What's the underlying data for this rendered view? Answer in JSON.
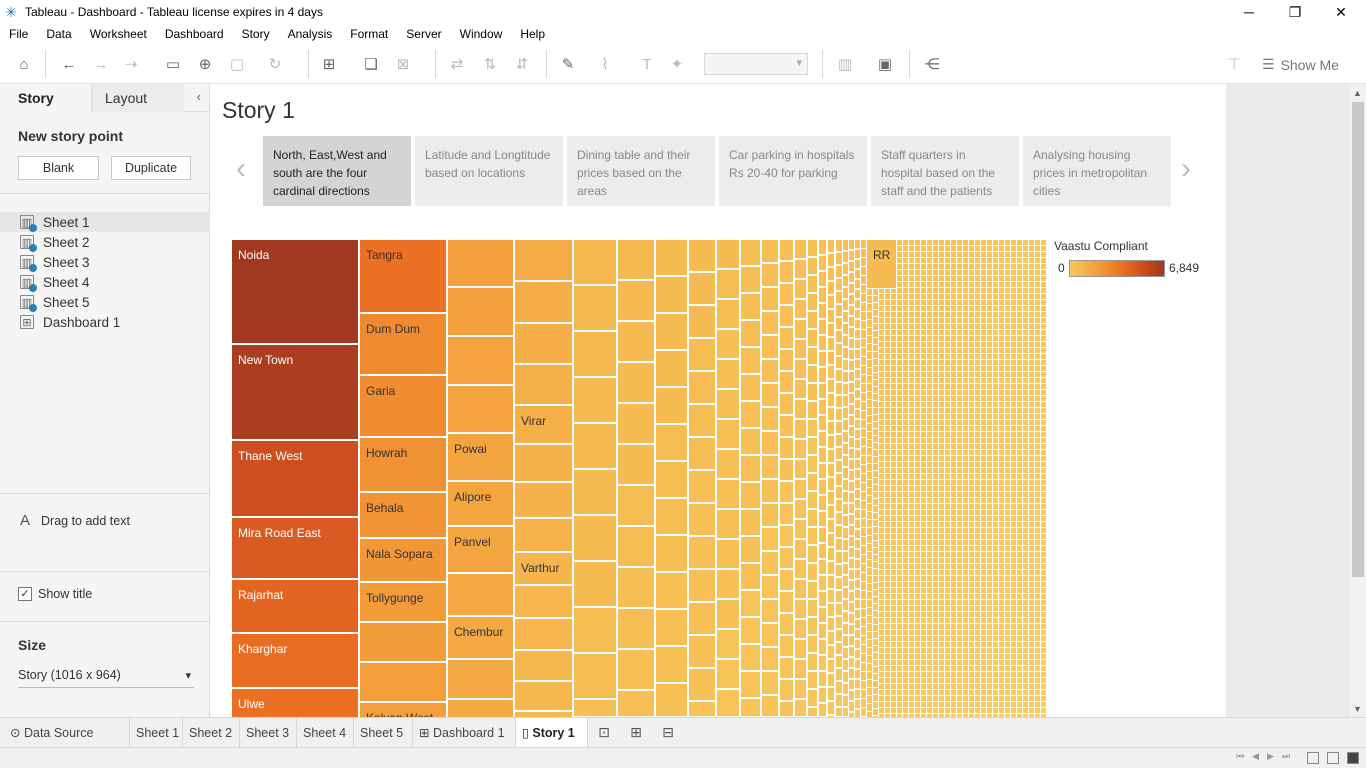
{
  "window": {
    "title": "Tableau - Dashboard - Tableau license expires in 4 days",
    "controls": [
      "minimize-icon",
      "restore-icon",
      "close-icon"
    ]
  },
  "menu": [
    "File",
    "Data",
    "Worksheet",
    "Dashboard",
    "Story",
    "Analysis",
    "Format",
    "Server",
    "Window",
    "Help"
  ],
  "toolbar": {
    "show_me_label": "Show Me"
  },
  "left_pane": {
    "tabs": [
      "Story",
      "Layout"
    ],
    "new_story_point_label": "New story point",
    "blank_label": "Blank",
    "duplicate_label": "Duplicate",
    "sheets": [
      {
        "label": "Sheet 1",
        "selected": true
      },
      {
        "label": "Sheet 2"
      },
      {
        "label": "Sheet 3"
      },
      {
        "label": "Sheet 4"
      },
      {
        "label": "Sheet 5"
      },
      {
        "label": "Dashboard 1"
      }
    ],
    "drag_text": "Drag to add text",
    "show_title": "Show title",
    "show_title_checked": true,
    "size_label": "Size",
    "size_value": "Story (1016 x 964)"
  },
  "story": {
    "title": "Story 1",
    "points": [
      {
        "text": "North, East,West and south are the four cardinal directions",
        "active": true
      },
      {
        "text": "Latitude and Longtitude based on locations"
      },
      {
        "text": "Dining table and their prices based on the areas"
      },
      {
        "text": "Car parking in hospitals Rs 20-40 for parking"
      },
      {
        "text": "Staff quarters in hospital based on the staff and the patients"
      },
      {
        "text": "Analysing housing prices in metropolitan cities"
      }
    ]
  },
  "treemap": {
    "labels": {
      "noida": "Noida",
      "new_town": "New Town",
      "thane_west": "Thane West",
      "mira_road_east": "Mira Road East",
      "rajarhat": "Rajarhat",
      "kharghar": "Kharghar",
      "ulwe": "Ulwe",
      "tangra": "Tangra",
      "dum_dum": "Dum Dum",
      "garia": "Garia",
      "howrah": "Howrah",
      "behala": "Behala",
      "nala_sopara": "Nala Sopara",
      "tollygunge": "Tollygunge",
      "kalyan_west": "Kalyan West",
      "powai": "Powai",
      "alipore": "Alipore",
      "panvel": "Panvel",
      "chembur": "Chembur",
      "virar": "Virar",
      "varthur": "Varthur",
      "rr": "RR"
    },
    "colors": {
      "high": "#a1381f",
      "mid": "#ee7a22",
      "low": "#f7c85c"
    }
  },
  "legend": {
    "title": "Vaastu Compliant",
    "min": "0",
    "max": "6,849"
  },
  "bottom_tabs": [
    "Data Source",
    "Sheet 1",
    "Sheet 2",
    "Sheet 3",
    "Sheet 4",
    "Sheet 5",
    "Dashboard 1",
    "Story 1"
  ]
}
